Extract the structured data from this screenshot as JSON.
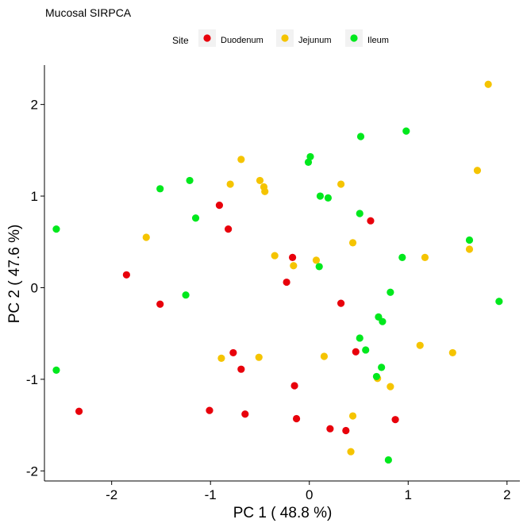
{
  "chart_data": {
    "type": "scatter",
    "title": "Mucosal SIRPCA",
    "xlabel": "PC 1 ( 48.8 %)",
    "ylabel": "PC 2 ( 47.6 %)",
    "xlim": [
      -2.68,
      2.13
    ],
    "ylim": [
      -2.11,
      2.43
    ],
    "x_ticks": [
      -2,
      -1,
      0,
      1,
      2
    ],
    "y_ticks": [
      -2,
      -1,
      0,
      1,
      2
    ],
    "grid": false,
    "legend": {
      "title": "Site",
      "position": "top"
    },
    "series": [
      {
        "name": "Duodenum",
        "color": "#e8000b",
        "points": [
          {
            "x": -2.33,
            "y": -1.35
          },
          {
            "x": -1.85,
            "y": 0.14
          },
          {
            "x": -1.51,
            "y": -0.18
          },
          {
            "x": -1.01,
            "y": -1.34
          },
          {
            "x": -0.91,
            "y": 0.9
          },
          {
            "x": -0.82,
            "y": 0.64
          },
          {
            "x": -0.77,
            "y": -0.71
          },
          {
            "x": -0.69,
            "y": -0.89
          },
          {
            "x": -0.65,
            "y": -1.38
          },
          {
            "x": -0.23,
            "y": 0.06
          },
          {
            "x": -0.17,
            "y": 0.33
          },
          {
            "x": -0.15,
            "y": -1.07
          },
          {
            "x": -0.13,
            "y": -1.43
          },
          {
            "x": 0.21,
            "y": -1.54
          },
          {
            "x": 0.32,
            "y": -0.17
          },
          {
            "x": 0.37,
            "y": -1.56
          },
          {
            "x": 0.47,
            "y": -0.7
          },
          {
            "x": 0.62,
            "y": 0.73
          },
          {
            "x": 0.87,
            "y": -1.44
          }
        ]
      },
      {
        "name": "Jejunum",
        "color": "#f5c400",
        "points": [
          {
            "x": -1.65,
            "y": 0.55
          },
          {
            "x": -0.89,
            "y": -0.77
          },
          {
            "x": -0.8,
            "y": 1.13
          },
          {
            "x": -0.69,
            "y": 1.4
          },
          {
            "x": -0.51,
            "y": -0.76
          },
          {
            "x": -0.5,
            "y": 1.17
          },
          {
            "x": -0.46,
            "y": 1.1
          },
          {
            "x": -0.45,
            "y": 1.05
          },
          {
            "x": -0.35,
            "y": 0.35
          },
          {
            "x": -0.16,
            "y": 0.24
          },
          {
            "x": 0.07,
            "y": 0.3
          },
          {
            "x": 0.15,
            "y": -0.75
          },
          {
            "x": 0.32,
            "y": 1.13
          },
          {
            "x": 0.44,
            "y": 0.49
          },
          {
            "x": 0.44,
            "y": -1.4
          },
          {
            "x": 0.42,
            "y": -1.79
          },
          {
            "x": 0.69,
            "y": -0.99
          },
          {
            "x": 0.82,
            "y": -1.08
          },
          {
            "x": 1.12,
            "y": -0.63
          },
          {
            "x": 1.17,
            "y": 0.33
          },
          {
            "x": 1.45,
            "y": -0.71
          },
          {
            "x": 1.62,
            "y": 0.42
          },
          {
            "x": 1.7,
            "y": 1.28
          },
          {
            "x": 1.81,
            "y": 2.22
          }
        ]
      },
      {
        "name": "Ileum",
        "color": "#00e81d",
        "points": [
          {
            "x": -2.56,
            "y": 0.64
          },
          {
            "x": -2.56,
            "y": -0.9
          },
          {
            "x": -1.51,
            "y": 1.08
          },
          {
            "x": -1.25,
            "y": -0.08
          },
          {
            "x": -1.21,
            "y": 1.17
          },
          {
            "x": -1.15,
            "y": 0.76
          },
          {
            "x": -0.01,
            "y": 1.37
          },
          {
            "x": 0.01,
            "y": 1.43
          },
          {
            "x": 0.1,
            "y": 0.23
          },
          {
            "x": 0.11,
            "y": 1.0
          },
          {
            "x": 0.19,
            "y": 0.98
          },
          {
            "x": 0.51,
            "y": 0.81
          },
          {
            "x": 0.51,
            "y": -0.55
          },
          {
            "x": 0.52,
            "y": 1.65
          },
          {
            "x": 0.57,
            "y": -0.68
          },
          {
            "x": 0.68,
            "y": -0.97
          },
          {
            "x": 0.7,
            "y": -0.32
          },
          {
            "x": 0.73,
            "y": -0.87
          },
          {
            "x": 0.74,
            "y": -0.37
          },
          {
            "x": 0.8,
            "y": -1.88
          },
          {
            "x": 0.82,
            "y": -0.05
          },
          {
            "x": 0.94,
            "y": 0.33
          },
          {
            "x": 0.98,
            "y": 1.71
          },
          {
            "x": 1.62,
            "y": 0.52
          },
          {
            "x": 1.92,
            "y": -0.15
          }
        ]
      }
    ]
  }
}
